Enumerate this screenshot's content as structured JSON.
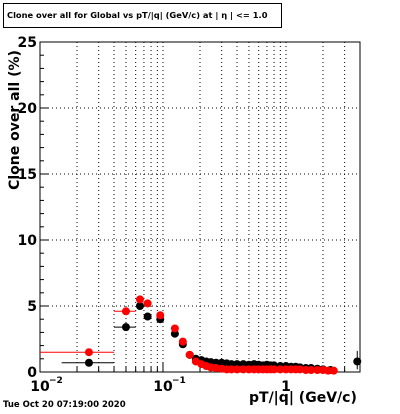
{
  "title": "Clone  over all for Global vs pT/|q| (GeV/c) at |  η | <= 1.0",
  "footer": "Tue Oct 20 07:19:00 2020",
  "chart_data": {
    "type": "scatter",
    "xlabel": "pT/|q| (GeV/c)",
    "ylabel": "Clone  over all (%)",
    "x_scale": "log",
    "xlim": [
      0.01,
      4
    ],
    "ylim": [
      0,
      25
    ],
    "grid": true,
    "x_major_ticks": [
      {
        "value": 0.01,
        "label": "10",
        "exp": "−2"
      },
      {
        "value": 0.1,
        "label": "10",
        "exp": "−1"
      },
      {
        "value": 1,
        "label": "1",
        "exp": ""
      }
    ],
    "y_ticks": [
      0,
      5,
      10,
      15,
      20,
      25
    ],
    "y_tick_labels": [
      "0",
      "5",
      "10",
      "15",
      "20",
      "25"
    ],
    "series": [
      {
        "color": "#000000",
        "points": [
          {
            "x": 0.025,
            "y": 0.7,
            "xerr": [
              0.015,
              0.04
            ]
          },
          {
            "x": 0.05,
            "y": 3.4,
            "xerr": [
              0.04,
              0.06
            ]
          },
          {
            "x": 0.065,
            "y": 5.0
          },
          {
            "x": 0.075,
            "y": 4.2
          },
          {
            "x": 0.095,
            "y": 4.0
          },
          {
            "x": 0.125,
            "y": 2.9
          },
          {
            "x": 0.145,
            "y": 2.1
          },
          {
            "x": 0.165,
            "y": 1.3
          },
          {
            "x": 0.185,
            "y": 1.0
          },
          {
            "x": 0.205,
            "y": 0.9
          },
          {
            "x": 0.225,
            "y": 0.8
          },
          {
            "x": 0.245,
            "y": 0.75
          },
          {
            "x": 0.27,
            "y": 0.7
          },
          {
            "x": 0.3,
            "y": 0.7
          },
          {
            "x": 0.33,
            "y": 0.65
          },
          {
            "x": 0.36,
            "y": 0.6
          },
          {
            "x": 0.4,
            "y": 0.6
          },
          {
            "x": 0.45,
            "y": 0.6
          },
          {
            "x": 0.5,
            "y": 0.55
          },
          {
            "x": 0.55,
            "y": 0.6
          },
          {
            "x": 0.6,
            "y": 0.55
          },
          {
            "x": 0.65,
            "y": 0.5
          },
          {
            "x": 0.7,
            "y": 0.55
          },
          {
            "x": 0.75,
            "y": 0.5
          },
          {
            "x": 0.8,
            "y": 0.5
          },
          {
            "x": 0.9,
            "y": 0.45
          },
          {
            "x": 1.0,
            "y": 0.45
          },
          {
            "x": 1.1,
            "y": 0.4
          },
          {
            "x": 1.2,
            "y": 0.4
          },
          {
            "x": 1.3,
            "y": 0.35
          },
          {
            "x": 1.45,
            "y": 0.3
          },
          {
            "x": 1.6,
            "y": 0.3
          },
          {
            "x": 1.8,
            "y": 0.25
          },
          {
            "x": 2.0,
            "y": 0.2
          },
          {
            "x": 2.3,
            "y": 0.15
          },
          {
            "x": 3.8,
            "y": 0.8,
            "yerr": [
              0.2,
              1.6
            ]
          }
        ]
      },
      {
        "color": "#ff0000",
        "points": [
          {
            "x": 0.025,
            "y": 1.5,
            "xerr": [
              0.01,
              0.04
            ]
          },
          {
            "x": 0.05,
            "y": 4.6,
            "xerr": [
              0.04,
              0.06
            ]
          },
          {
            "x": 0.065,
            "y": 5.5
          },
          {
            "x": 0.075,
            "y": 5.2
          },
          {
            "x": 0.095,
            "y": 4.3
          },
          {
            "x": 0.125,
            "y": 3.3
          },
          {
            "x": 0.145,
            "y": 2.3
          },
          {
            "x": 0.165,
            "y": 1.3
          },
          {
            "x": 0.185,
            "y": 0.8
          },
          {
            "x": 0.205,
            "y": 0.6
          },
          {
            "x": 0.225,
            "y": 0.45
          },
          {
            "x": 0.245,
            "y": 0.35
          },
          {
            "x": 0.27,
            "y": 0.3
          },
          {
            "x": 0.3,
            "y": 0.25
          },
          {
            "x": 0.33,
            "y": 0.2
          },
          {
            "x": 0.36,
            "y": 0.2
          },
          {
            "x": 0.4,
            "y": 0.2
          },
          {
            "x": 0.45,
            "y": 0.2
          },
          {
            "x": 0.5,
            "y": 0.2
          },
          {
            "x": 0.55,
            "y": 0.2
          },
          {
            "x": 0.6,
            "y": 0.2
          },
          {
            "x": 0.65,
            "y": 0.2
          },
          {
            "x": 0.7,
            "y": 0.2
          },
          {
            "x": 0.75,
            "y": 0.2
          },
          {
            "x": 0.8,
            "y": 0.2
          },
          {
            "x": 0.9,
            "y": 0.2
          },
          {
            "x": 1.0,
            "y": 0.2
          },
          {
            "x": 1.1,
            "y": 0.2
          },
          {
            "x": 1.2,
            "y": 0.2
          },
          {
            "x": 1.3,
            "y": 0.2
          },
          {
            "x": 1.45,
            "y": 0.15
          },
          {
            "x": 1.6,
            "y": 0.15
          },
          {
            "x": 1.8,
            "y": 0.15
          },
          {
            "x": 2.0,
            "y": 0.15
          },
          {
            "x": 2.2,
            "y": 0.1
          },
          {
            "x": 2.45,
            "y": 0.1
          }
        ]
      }
    ]
  }
}
